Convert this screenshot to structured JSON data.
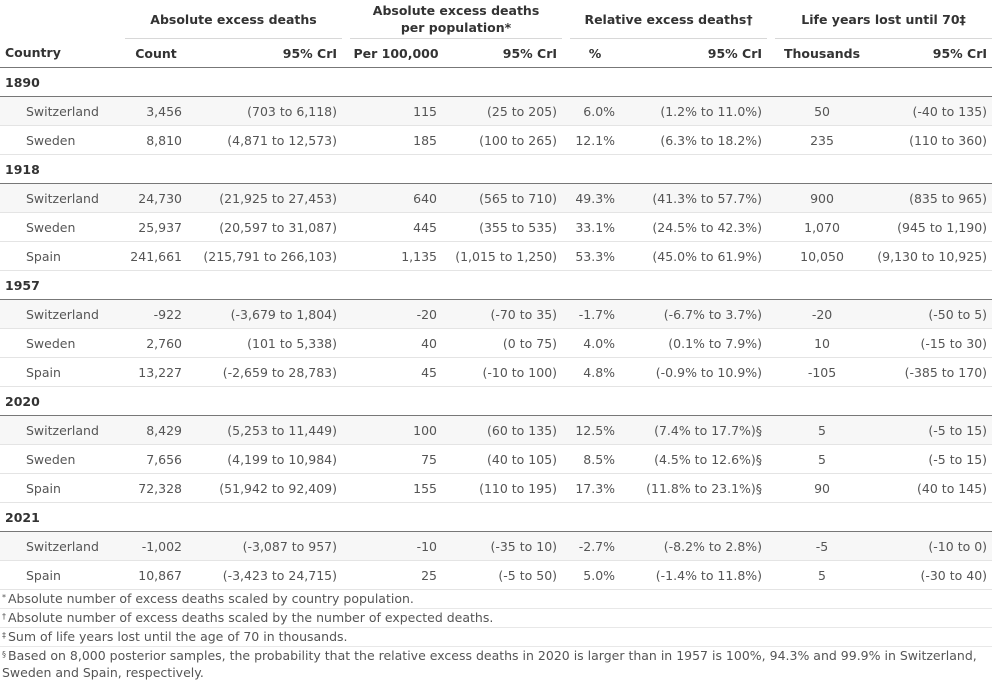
{
  "group_headers": {
    "absolute": "Absolute excess deaths",
    "per_pop_line1": "Absolute excess deaths",
    "per_pop_line2": "per population*",
    "relative": "Relative excess deaths†",
    "life_years": "Life years lost until 70‡"
  },
  "columns": {
    "country": "Country",
    "count": "Count",
    "cri1": "95% CrI",
    "per100k": "Per 100,000",
    "cri2": "95% CrI",
    "pct": "%",
    "cri3": "95% CrI",
    "thousands": "Thousands",
    "cri4": "95% CrI"
  },
  "years": [
    {
      "year": "1890",
      "rows": [
        [
          "Switzerland",
          "3,456",
          "(703 to 6,118)",
          "115",
          "(25 to 205)",
          "6.0%",
          "(1.2% to 11.0%)",
          "50",
          "(-40 to 135)"
        ],
        [
          "Sweden",
          "8,810",
          "(4,871 to 12,573)",
          "185",
          "(100 to 265)",
          "12.1%",
          "(6.3% to 18.2%)",
          "235",
          "(110 to 360)"
        ]
      ]
    },
    {
      "year": "1918",
      "rows": [
        [
          "Switzerland",
          "24,730",
          "(21,925 to 27,453)",
          "640",
          "(565 to 710)",
          "49.3%",
          "(41.3% to 57.7%)",
          "900",
          "(835 to 965)"
        ],
        [
          "Sweden",
          "25,937",
          "(20,597 to 31,087)",
          "445",
          "(355 to 535)",
          "33.1%",
          "(24.5% to 42.3%)",
          "1,070",
          "(945 to 1,190)"
        ],
        [
          "Spain",
          "241,661",
          "(215,791 to 266,103)",
          "1,135",
          "(1,015 to 1,250)",
          "53.3%",
          "(45.0% to 61.9%)",
          "10,050",
          "(9,130 to 10,925)"
        ]
      ]
    },
    {
      "year": "1957",
      "rows": [
        [
          "Switzerland",
          "-922",
          "(-3,679 to 1,804)",
          "-20",
          "(-70 to 35)",
          "-1.7%",
          "(-6.7% to 3.7%)",
          "-20",
          "(-50 to 5)"
        ],
        [
          "Sweden",
          "2,760",
          "(101 to 5,338)",
          "40",
          "(0 to 75)",
          "4.0%",
          "(0.1% to 7.9%)",
          "10",
          "(-15 to 30)"
        ],
        [
          "Spain",
          "13,227",
          "(-2,659 to 28,783)",
          "45",
          "(-10 to 100)",
          "4.8%",
          "(-0.9% to 10.9%)",
          "-105",
          "(-385 to 170)"
        ]
      ]
    },
    {
      "year": "2020",
      "rows": [
        [
          "Switzerland",
          "8,429",
          "(5,253 to 11,449)",
          "100",
          "(60 to 135)",
          "12.5%",
          "(7.4% to 17.7%)§",
          "5",
          "(-5 to 15)"
        ],
        [
          "Sweden",
          "7,656",
          "(4,199 to 10,984)",
          "75",
          "(40 to 105)",
          "8.5%",
          "(4.5% to 12.6%)§",
          "5",
          "(-5 to 15)"
        ],
        [
          "Spain",
          "72,328",
          "(51,942 to 92,409)",
          "155",
          "(110 to 195)",
          "17.3%",
          "(11.8% to 23.1%)§",
          "90",
          "(40 to 145)"
        ]
      ]
    },
    {
      "year": "2021",
      "rows": [
        [
          "Switzerland",
          "-1,002",
          "(-3,087 to 957)",
          "-10",
          "(-35 to 10)",
          "-2.7%",
          "(-8.2% to 2.8%)",
          "-5",
          "(-10 to 0)"
        ],
        [
          "Spain",
          "10,867",
          "(-3,423 to 24,715)",
          "25",
          "(-5 to 50)",
          "5.0%",
          "(-1.4% to 11.8%)",
          "5",
          "(-30 to 40)"
        ]
      ]
    }
  ],
  "footnotes": [
    {
      "mark": "*",
      "text": "Absolute number of excess deaths scaled by country population."
    },
    {
      "mark": "†",
      "text": "Absolute number of excess deaths scaled by the number of expected deaths."
    },
    {
      "mark": "‡",
      "text": "Sum of life years lost until the age of 70 in thousands."
    },
    {
      "mark": "§",
      "text": "Based on 8,000 posterior samples, the probability that the relative excess deaths in 2020 is larger than in 1957 is 100%, 94.3% and 99.9% in Switzerland, Sweden and Spain, respectively."
    }
  ]
}
